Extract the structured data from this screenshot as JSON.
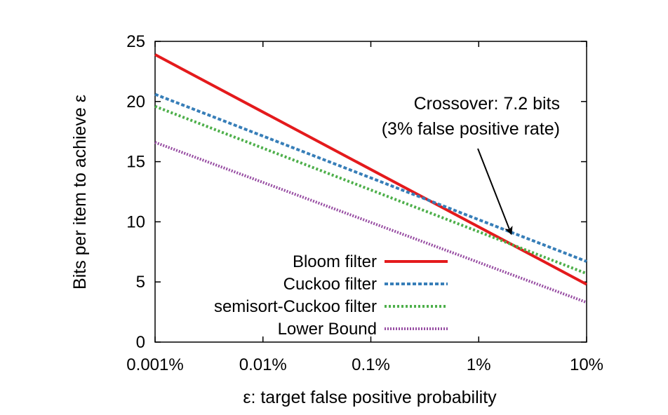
{
  "chart_data": {
    "type": "line",
    "title": "",
    "xlabel": "ε: target false positive probability",
    "ylabel": "Bits per item to achieve ε",
    "x_scale": "log",
    "xlim": [
      1e-05,
      0.1
    ],
    "ylim": [
      0,
      25
    ],
    "x_ticks": [
      {
        "value": 1e-05,
        "label": "0.001%"
      },
      {
        "value": 0.0001,
        "label": "0.01%"
      },
      {
        "value": 0.001,
        "label": "0.1%"
      },
      {
        "value": 0.01,
        "label": "1%"
      },
      {
        "value": 0.1,
        "label": "10%"
      }
    ],
    "y_ticks": [
      {
        "value": 0,
        "label": "0"
      },
      {
        "value": 5,
        "label": "5"
      },
      {
        "value": 10,
        "label": "10"
      },
      {
        "value": 15,
        "label": "15"
      },
      {
        "value": 20,
        "label": "20"
      },
      {
        "value": 25,
        "label": "25"
      }
    ],
    "grid": false,
    "legend_position": "bottom-center",
    "series": [
      {
        "name": "Bloom filter",
        "color": "#e41a1c",
        "style": "solid",
        "x": [
          1e-05,
          0.1
        ],
        "y": [
          23.9,
          4.8
        ]
      },
      {
        "name": "Cuckoo filter",
        "color": "#377eb8",
        "style": "dashed",
        "x": [
          1e-05,
          0.1
        ],
        "y": [
          20.6,
          6.7
        ]
      },
      {
        "name": "semisort-Cuckoo filter",
        "color": "#4daf4a",
        "style": "dotted",
        "x": [
          1e-05,
          0.1
        ],
        "y": [
          19.6,
          5.7
        ]
      },
      {
        "name": "Lower Bound",
        "color": "#984ea3",
        "style": "dense-dotted",
        "x": [
          1e-05,
          0.1
        ],
        "y": [
          16.6,
          3.3
        ]
      }
    ],
    "annotations": [
      {
        "lines": [
          "Crossover:  7.2 bits",
          "(3% false positive rate)"
        ],
        "arrow_to": {
          "x": 0.02,
          "y": 9.0
        }
      }
    ]
  }
}
